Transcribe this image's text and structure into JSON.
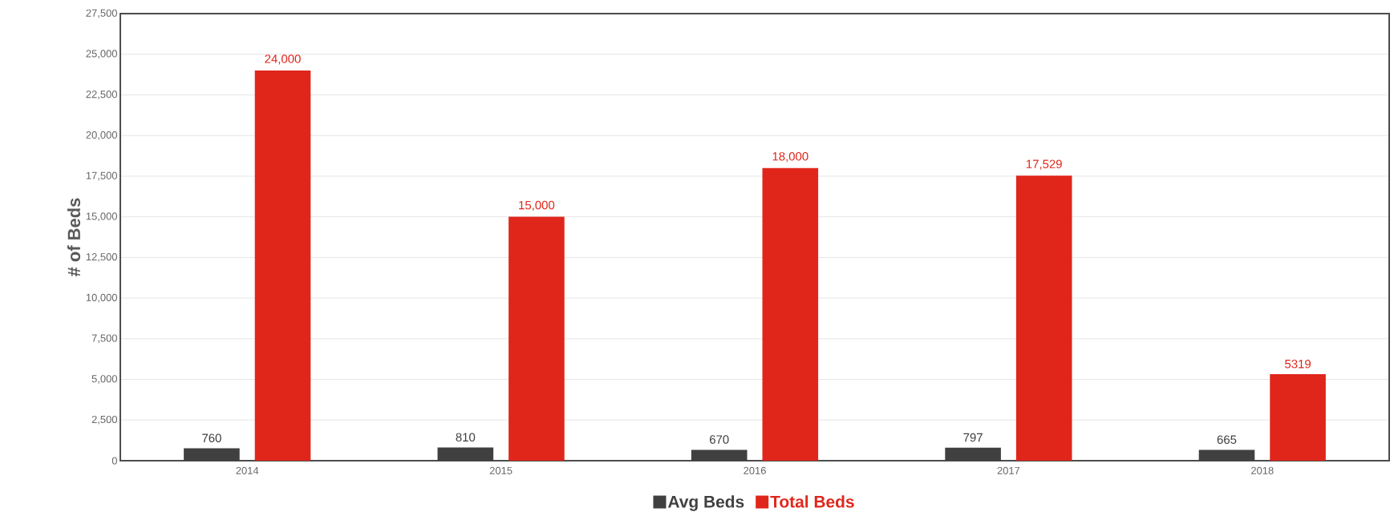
{
  "chart_data": {
    "type": "bar",
    "ylabel": "# of Beds",
    "categories": [
      "2014",
      "2015",
      "2016",
      "2017",
      "2018"
    ],
    "series": [
      {
        "name": "Avg Beds",
        "color": "#404040",
        "values": [
          760,
          810,
          670,
          797,
          665
        ],
        "value_labels": [
          "760",
          "810",
          "670",
          "797",
          "665"
        ]
      },
      {
        "name": "Total Beds",
        "color": "#e0261b",
        "values": [
          24000,
          15000,
          18000,
          17529,
          5319
        ],
        "value_labels": [
          "24,000",
          "15,000",
          "18,000",
          "17,529",
          "5319"
        ]
      }
    ],
    "ylim": [
      0,
      27500
    ],
    "yticks": [
      {
        "value": 0,
        "label": "0"
      },
      {
        "value": 2500,
        "label": "2,500"
      },
      {
        "value": 5000,
        "label": "5,000"
      },
      {
        "value": 7500,
        "label": "7,500"
      },
      {
        "value": 10000,
        "label": "10,000"
      },
      {
        "value": 12500,
        "label": "12,500"
      },
      {
        "value": 15000,
        "label": "15,000"
      },
      {
        "value": 17500,
        "label": "17,500"
      },
      {
        "value": 20000,
        "label": "20,000"
      },
      {
        "value": 22500,
        "label": "22,500"
      },
      {
        "value": 25000,
        "label": "25,000"
      },
      {
        "value": 27500,
        "label": "27,500"
      }
    ],
    "grid": "y",
    "legend": "bottom"
  }
}
